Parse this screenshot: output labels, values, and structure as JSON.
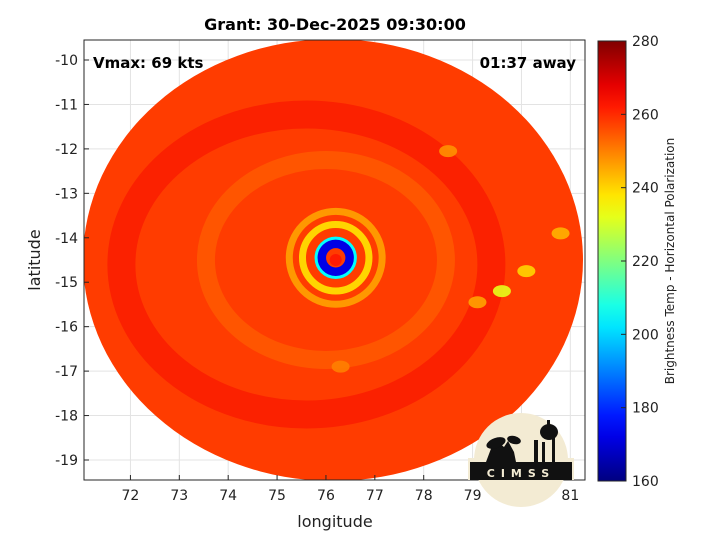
{
  "chart_data": {
    "type": "heatmap",
    "title": "Grant: 30-Dec-2025 09:30:00",
    "xlabel": "longitude",
    "ylabel": "latitude",
    "xlim": [
      71.05,
      81.3
    ],
    "ylim": [
      -19.45,
      -9.55
    ],
    "x_ticks": [
      72,
      73,
      74,
      75,
      76,
      77,
      78,
      79,
      80,
      81
    ],
    "y_ticks": [
      -10,
      -11,
      -12,
      -13,
      -14,
      -15,
      -16,
      -17,
      -18,
      -19
    ],
    "grid": true,
    "annotations": {
      "vmax": "Vmax: 69 kts",
      "time_away": "01:37 away"
    },
    "colorbar": {
      "label": "Brightness Temp - Horizontal Polarization",
      "min": 160,
      "max": 280,
      "ticks": [
        160,
        180,
        200,
        220,
        240,
        260,
        280
      ],
      "colormap": "jet"
    },
    "swath_edge_value": 258,
    "features": [
      {
        "kind": "eyewall_ring",
        "lon": 76.2,
        "lat": -14.45,
        "radius_deg": 0.3,
        "value": 172
      },
      {
        "kind": "eye",
        "lon": 76.2,
        "lat": -14.5,
        "value": 262
      },
      {
        "kind": "ring",
        "lon": 76.2,
        "lat": -14.45,
        "radius_deg": 0.68,
        "value": 238
      },
      {
        "kind": "ring",
        "lon": 76.2,
        "lat": -14.45,
        "radius_deg": 0.95,
        "value": 246
      },
      {
        "kind": "spot",
        "lon": 79.6,
        "lat": -15.2,
        "value": 232
      },
      {
        "kind": "spot",
        "lon": 80.1,
        "lat": -14.75,
        "value": 240
      },
      {
        "kind": "spot",
        "lon": 80.8,
        "lat": -13.9,
        "value": 244
      },
      {
        "kind": "spot",
        "lon": 79.1,
        "lat": -15.45,
        "value": 246
      },
      {
        "kind": "spot",
        "lon": 78.5,
        "lat": -12.05,
        "value": 248
      },
      {
        "kind": "spot",
        "lon": 76.3,
        "lat": -16.9,
        "value": 250
      }
    ]
  },
  "logo": {
    "text": "CIMSS"
  }
}
